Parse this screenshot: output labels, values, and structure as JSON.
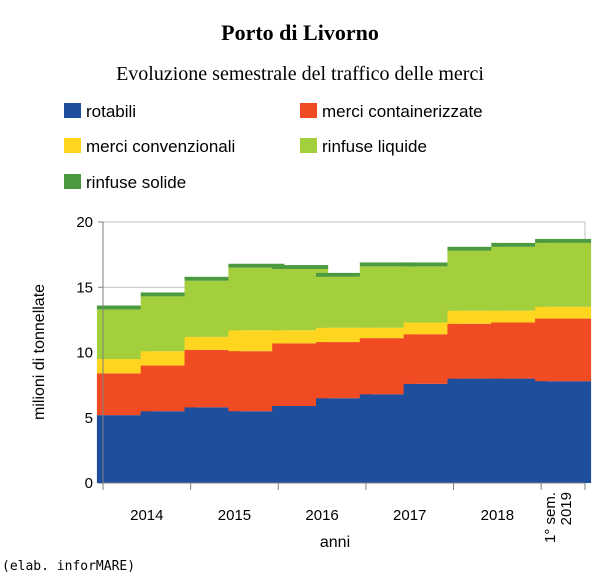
{
  "chart_data": {
    "type": "bar",
    "stacked": true,
    "title": "Porto di Livorno",
    "subtitle": "Evoluzione semestrale del traffico delle merci",
    "ylabel": "milioni di tonnellate",
    "xlabel": "anni",
    "ylim": [
      0,
      20
    ],
    "yticks": [
      0,
      5,
      10,
      15,
      20
    ],
    "grid": true,
    "legend_position": "top",
    "x_labels": [
      "2014",
      "2015",
      "2016",
      "2017",
      "2018"
    ],
    "last_label": [
      "1° sem.",
      "2019"
    ],
    "categories": [
      "2014-1",
      "2014-2",
      "2015-1",
      "2015-2",
      "2016-1",
      "2016-2",
      "2017-1",
      "2017-2",
      "2018-1",
      "2018-2",
      "2019-1"
    ],
    "series": [
      {
        "name": "rotabili",
        "color": "#1f4e9c",
        "values": [
          5.2,
          5.5,
          5.8,
          5.5,
          5.9,
          6.5,
          6.8,
          7.6,
          8.0,
          8.0,
          7.8
        ]
      },
      {
        "name": "merci containerizzate",
        "color": "#f04b23",
        "values": [
          3.2,
          3.5,
          4.4,
          4.6,
          4.8,
          4.3,
          4.3,
          3.8,
          4.2,
          4.3,
          4.8
        ]
      },
      {
        "name": "merci convenzionali",
        "color": "#ffd51f",
        "values": [
          1.1,
          1.1,
          1.0,
          1.6,
          1.0,
          1.1,
          0.8,
          0.9,
          1.0,
          0.9,
          0.9
        ]
      },
      {
        "name": "rinfuse liquide",
        "color": "#a4cf3c",
        "values": [
          3.8,
          4.2,
          4.3,
          4.8,
          4.7,
          3.9,
          4.7,
          4.3,
          4.6,
          4.9,
          4.9
        ]
      },
      {
        "name": "rinfuse solide",
        "color": "#4c9a3f",
        "values": [
          0.3,
          0.3,
          0.3,
          0.3,
          0.3,
          0.3,
          0.3,
          0.3,
          0.3,
          0.3,
          0.3
        ]
      }
    ]
  },
  "credit": "(elab. inforMARE)"
}
